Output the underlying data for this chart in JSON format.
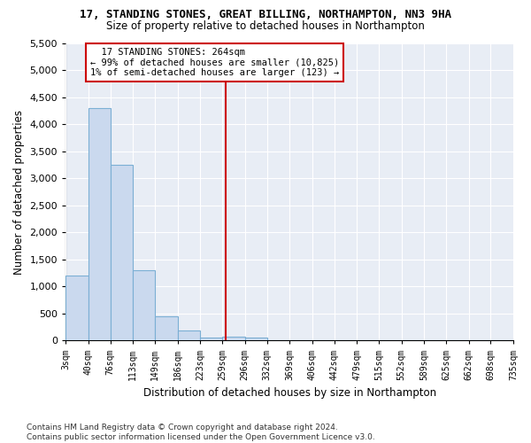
{
  "title1": "17, STANDING STONES, GREAT BILLING, NORTHAMPTON, NN3 9HA",
  "title2": "Size of property relative to detached houses in Northampton",
  "xlabel": "Distribution of detached houses by size in Northampton",
  "ylabel": "Number of detached properties",
  "footnote": "Contains HM Land Registry data © Crown copyright and database right 2024.\nContains public sector information licensed under the Open Government Licence v3.0.",
  "annotation_title": "17 STANDING STONES: 264sqm",
  "annotation_line1": "← 99% of detached houses are smaller (10,825)",
  "annotation_line2": "1% of semi-detached houses are larger (123) →",
  "vline_x": 264,
  "bar_color": "#cad9ee",
  "bar_edge_color": "#7bafd4",
  "vline_color": "#cc0000",
  "annotation_box_edgecolor": "#cc0000",
  "background_color": "#e8edf5",
  "grid_color": "#ffffff",
  "bins": [
    3,
    40,
    76,
    113,
    149,
    186,
    223,
    259,
    296,
    332,
    369,
    406,
    442,
    479,
    515,
    552,
    589,
    625,
    662,
    698,
    735
  ],
  "counts": [
    1200,
    4300,
    3250,
    1300,
    450,
    180,
    50,
    75,
    55,
    0,
    0,
    0,
    0,
    0,
    0,
    0,
    0,
    0,
    0,
    0
  ],
  "ylim": [
    0,
    5500
  ],
  "yticks": [
    0,
    500,
    1000,
    1500,
    2000,
    2500,
    3000,
    3500,
    4000,
    4500,
    5000,
    5500
  ]
}
